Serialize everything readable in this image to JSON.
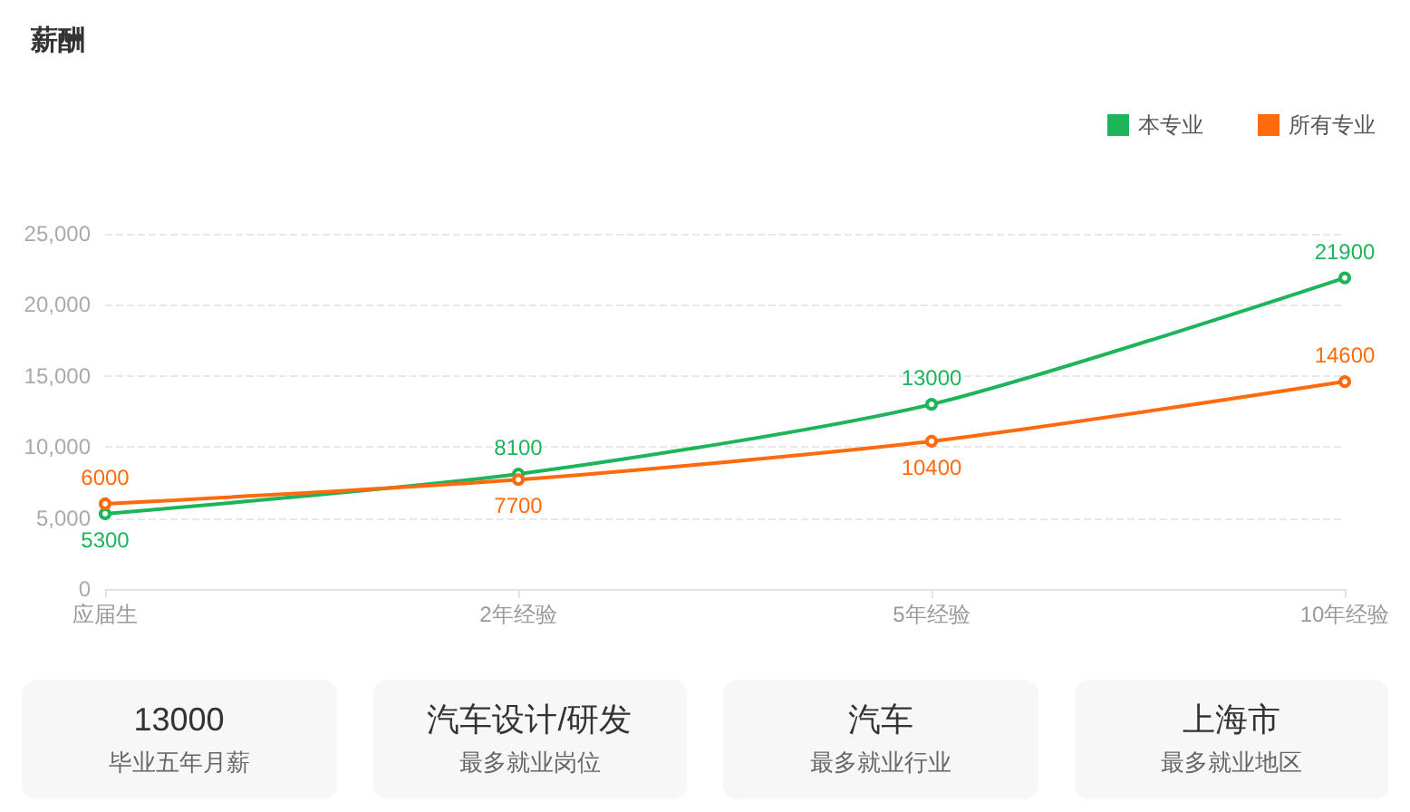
{
  "chart_data": [
    {
      "type": "line",
      "title": "薪酬",
      "categories": [
        "应届生",
        "2年经验",
        "5年经验",
        "10年经验"
      ],
      "series": [
        {
          "name": "本专业",
          "color": "#1db45a",
          "values": [
            5300,
            8100,
            13000,
            21900
          ]
        },
        {
          "name": "所有专业",
          "color": "#ff6a0e",
          "values": [
            6000,
            7700,
            10400,
            14600
          ]
        }
      ],
      "ylim": [
        0,
        25000
      ],
      "yticks": [
        0,
        {
          "value": 5000,
          "label": "5,000"
        },
        {
          "value": 10000,
          "label": "10,000"
        },
        {
          "value": 15000,
          "label": "15,000"
        },
        {
          "value": 20000,
          "label": "20,000"
        },
        {
          "value": 25000,
          "label": "25,000"
        }
      ],
      "grid": "y",
      "legend": "top right",
      "marker": "circle",
      "data_labels": true
    },
    {
      "type": "other",
      "annotations": [
        "13000",
        "毕业五年月薪",
        "汽车设计/研发",
        "最多就业岗位",
        "汽车",
        "最多就业行业",
        "上海市",
        "最多就业地区"
      ]
    }
  ]
}
